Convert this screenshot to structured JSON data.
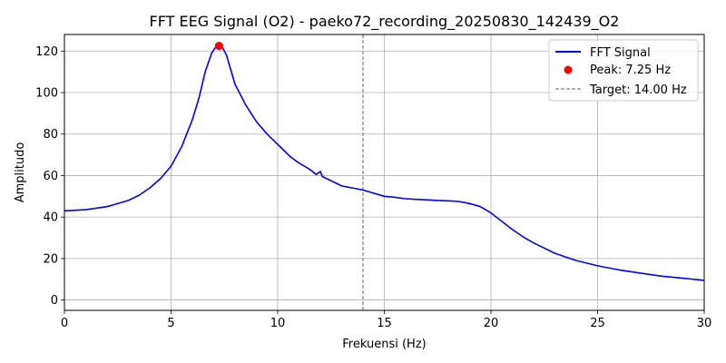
{
  "chart_data": {
    "type": "line",
    "title": "FFT EEG Signal (O2) - paeko72_recording_20250830_142439_O2",
    "xlabel": "Frekuensi (Hz)",
    "ylabel": "Amplitudo",
    "xlim": [
      0,
      30
    ],
    "ylim": [
      -5,
      128
    ],
    "xticks": [
      0,
      5,
      10,
      15,
      20,
      25,
      30
    ],
    "yticks": [
      0,
      20,
      40,
      60,
      80,
      100,
      120
    ],
    "grid": true,
    "legend_position": "top-right",
    "series": [
      {
        "name": "FFT Signal",
        "color": "#0000ff",
        "x": [
          0,
          1,
          2,
          3,
          3.5,
          4,
          4.5,
          5,
          5.5,
          6,
          6.3,
          6.6,
          6.9,
          7.1,
          7.25,
          7.4,
          7.6,
          8,
          8.5,
          9,
          9.5,
          10,
          10.3,
          10.6,
          11,
          11.5,
          11.8,
          12,
          12.1,
          12.3,
          12.5,
          13,
          13.5,
          14,
          14.5,
          15,
          15.5,
          16,
          16.5,
          17,
          17.5,
          18,
          18.5,
          19,
          19.5,
          20,
          20.5,
          21,
          21.5,
          22,
          23,
          24,
          25,
          26,
          27,
          28,
          29,
          30
        ],
        "y": [
          43,
          43.5,
          45,
          48,
          50.5,
          54,
          58.5,
          64.5,
          74,
          87,
          97,
          110,
          119,
          122,
          122.5,
          122,
          118,
          104,
          94,
          86,
          80,
          75,
          72,
          69,
          66,
          63,
          60.5,
          62,
          59.5,
          58.5,
          57.5,
          55,
          54,
          53,
          51.5,
          50,
          49.5,
          48.8,
          48.5,
          48.3,
          48,
          47.8,
          47.5,
          46.5,
          45,
          42,
          38,
          34,
          30.5,
          27.5,
          22.5,
          19,
          16.5,
          14.5,
          13,
          11.5,
          10.5,
          9.5
        ]
      }
    ],
    "peak": {
      "label": "Peak: 7.25 Hz",
      "x": 7.25,
      "y": 122.5,
      "color": "#ff0000"
    },
    "target": {
      "label": "Target: 14.00 Hz",
      "x": 14.0,
      "color": "#808080"
    }
  }
}
